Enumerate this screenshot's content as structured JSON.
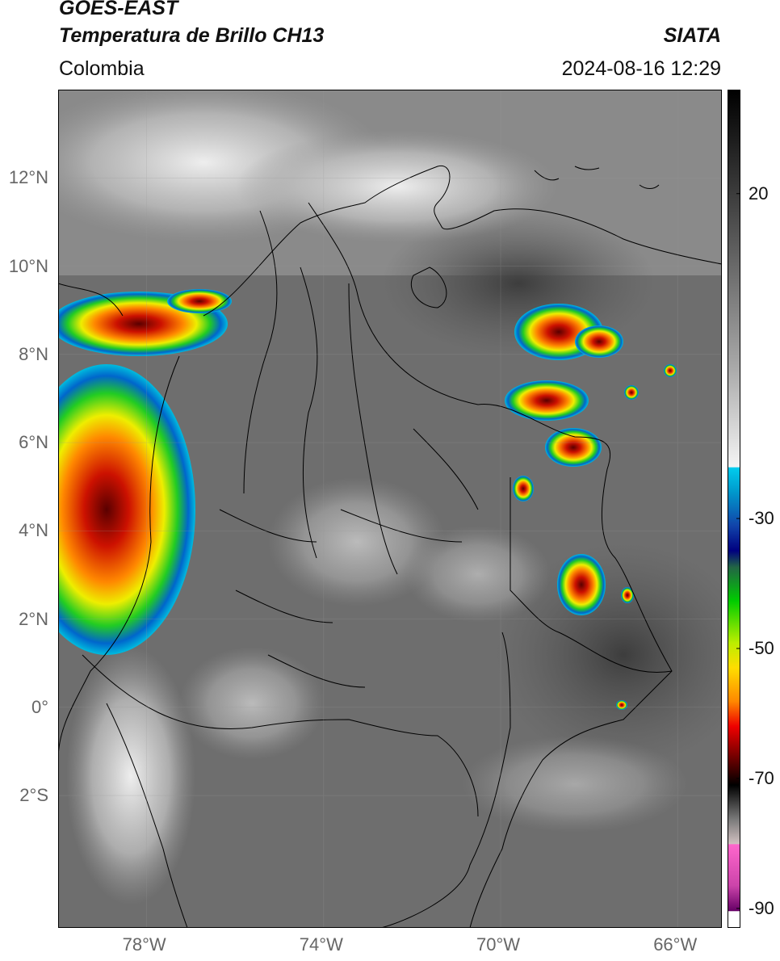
{
  "header": {
    "satellite": "GOES-EAST",
    "product": "Temperatura de Brillo CH13",
    "region": "Colombia",
    "source": "SIATA",
    "datetime": "2024-08-16 12:29"
  },
  "map": {
    "lon_range": [
      -80,
      -65
    ],
    "lat_range": [
      -5,
      14
    ],
    "lat_ticks": [
      {
        "lat": 12,
        "label": "12°N"
      },
      {
        "lat": 10,
        "label": "10°N"
      },
      {
        "lat": 8,
        "label": "8°N"
      },
      {
        "lat": 6,
        "label": "6°N"
      },
      {
        "lat": 4,
        "label": "4°N"
      },
      {
        "lat": 2,
        "label": "2°N"
      },
      {
        "lat": 0,
        "label": "0°"
      },
      {
        "lat": -2,
        "label": "2°S"
      }
    ],
    "lon_ticks": [
      {
        "lon": -78,
        "label": "78°W"
      },
      {
        "lon": -74,
        "label": "74°W"
      },
      {
        "lon": -70,
        "label": "70°W"
      },
      {
        "lon": -66,
        "label": "66°W"
      }
    ],
    "grid": true
  },
  "colorbar": {
    "range": [
      -93,
      36
    ],
    "tick_labels": [
      {
        "value": 20,
        "label": "20"
      },
      {
        "value": -30,
        "label": "-30"
      },
      {
        "value": -50,
        "label": "-50"
      },
      {
        "value": -70,
        "label": "-70"
      },
      {
        "value": -90,
        "label": "-90"
      }
    ]
  }
}
